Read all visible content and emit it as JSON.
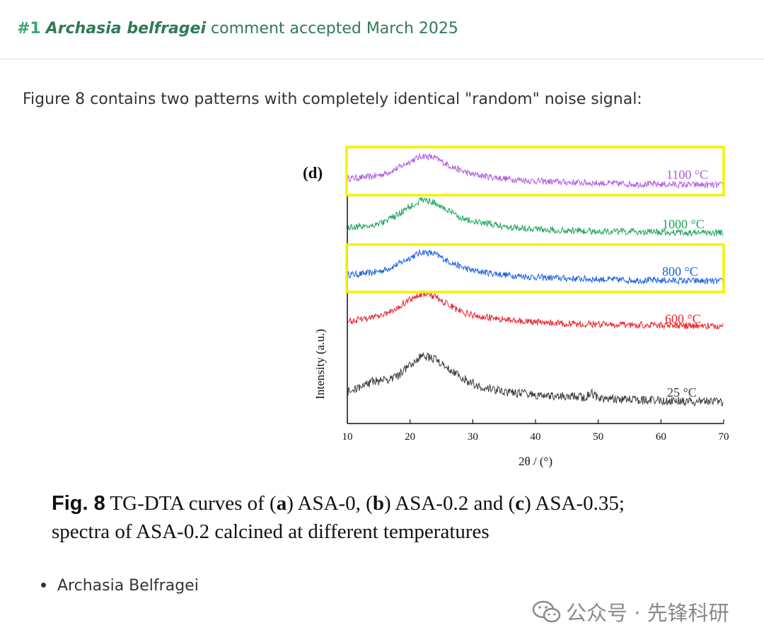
{
  "header": {
    "number": "#1",
    "author": "Archasia belfragei",
    "status": "comment accepted March 2025"
  },
  "intro_text": "Figure 8 contains two patterns with completely identical \"random\" noise signal:",
  "figure": {
    "panel_label": "(d)",
    "highlight_color": "#f5f100"
  },
  "chart_data": {
    "type": "line",
    "xlabel": "2θ / (°)",
    "ylabel": "Intensity (a.u.)",
    "xlim": [
      10,
      70
    ],
    "xticks": [
      "10",
      "20",
      "30",
      "40",
      "50",
      "60",
      "70"
    ],
    "series": [
      {
        "name": "1100 °C",
        "color": "#b25ae0",
        "peak_x": 22,
        "highlighted": true,
        "x": [
          10,
          12,
          14,
          16,
          18,
          20,
          22,
          24,
          26,
          28,
          30,
          35,
          40,
          45,
          50,
          55,
          60,
          65,
          70
        ],
        "values": [
          0.3,
          0.32,
          0.35,
          0.42,
          0.55,
          0.72,
          0.86,
          0.8,
          0.64,
          0.5,
          0.4,
          0.3,
          0.24,
          0.21,
          0.19,
          0.17,
          0.16,
          0.15,
          0.14
        ]
      },
      {
        "name": "1000 °C",
        "color": "#1aa35c",
        "peak_x": 22,
        "highlighted": false,
        "x": [
          10,
          12,
          14,
          16,
          18,
          20,
          22,
          24,
          26,
          28,
          30,
          35,
          40,
          45,
          50,
          55,
          60,
          65,
          70
        ],
        "values": [
          0.22,
          0.25,
          0.28,
          0.36,
          0.52,
          0.72,
          0.88,
          0.8,
          0.62,
          0.46,
          0.36,
          0.25,
          0.19,
          0.15,
          0.13,
          0.12,
          0.11,
          0.1,
          0.1
        ]
      },
      {
        "name": "800 °C",
        "color": "#1a5fe0",
        "peak_x": 22.5,
        "highlighted": true,
        "x": [
          10,
          12,
          14,
          16,
          18,
          20,
          22,
          24,
          26,
          28,
          30,
          35,
          40,
          45,
          50,
          55,
          60,
          65,
          70
        ],
        "values": [
          0.3,
          0.32,
          0.35,
          0.42,
          0.55,
          0.72,
          0.86,
          0.8,
          0.64,
          0.5,
          0.4,
          0.3,
          0.24,
          0.21,
          0.19,
          0.17,
          0.16,
          0.15,
          0.14
        ]
      },
      {
        "name": "600 °C",
        "color": "#e8202a",
        "peak_x": 22.5,
        "highlighted": false,
        "x": [
          10,
          12,
          14,
          16,
          18,
          20,
          22,
          24,
          26,
          28,
          30,
          35,
          40,
          45,
          50,
          55,
          60,
          65,
          70
        ],
        "values": [
          0.25,
          0.28,
          0.33,
          0.42,
          0.58,
          0.76,
          0.9,
          0.82,
          0.64,
          0.48,
          0.38,
          0.28,
          0.22,
          0.19,
          0.17,
          0.16,
          0.15,
          0.14,
          0.13
        ]
      },
      {
        "name": "25 °C",
        "color": "#3a3a3a",
        "peak_x": 22.5,
        "highlighted": false,
        "x": [
          10,
          12,
          14,
          16,
          18,
          20,
          22,
          24,
          26,
          28,
          30,
          33,
          36,
          38,
          40,
          44,
          48,
          49,
          50,
          55,
          60,
          65,
          70
        ],
        "values": [
          0.3,
          0.36,
          0.48,
          0.5,
          0.58,
          0.78,
          0.95,
          0.88,
          0.72,
          0.56,
          0.44,
          0.34,
          0.28,
          0.26,
          0.24,
          0.22,
          0.2,
          0.26,
          0.18,
          0.15,
          0.13,
          0.12,
          0.11
        ]
      }
    ]
  },
  "caption": {
    "label": "Fig. 8",
    "p1": " TG-DTA curves of (",
    "a": "a",
    "p2": ") ASA-0, (",
    "b": "b",
    "p3": ") ASA-0.2 and (",
    "c": "c",
    "p4": ") ASA-0.35;",
    "line2": "spectra of ASA-0.2 calcined at different temperatures"
  },
  "bullet": "Archasia Belfragei",
  "watermark": "公众号 · 先锋科研"
}
